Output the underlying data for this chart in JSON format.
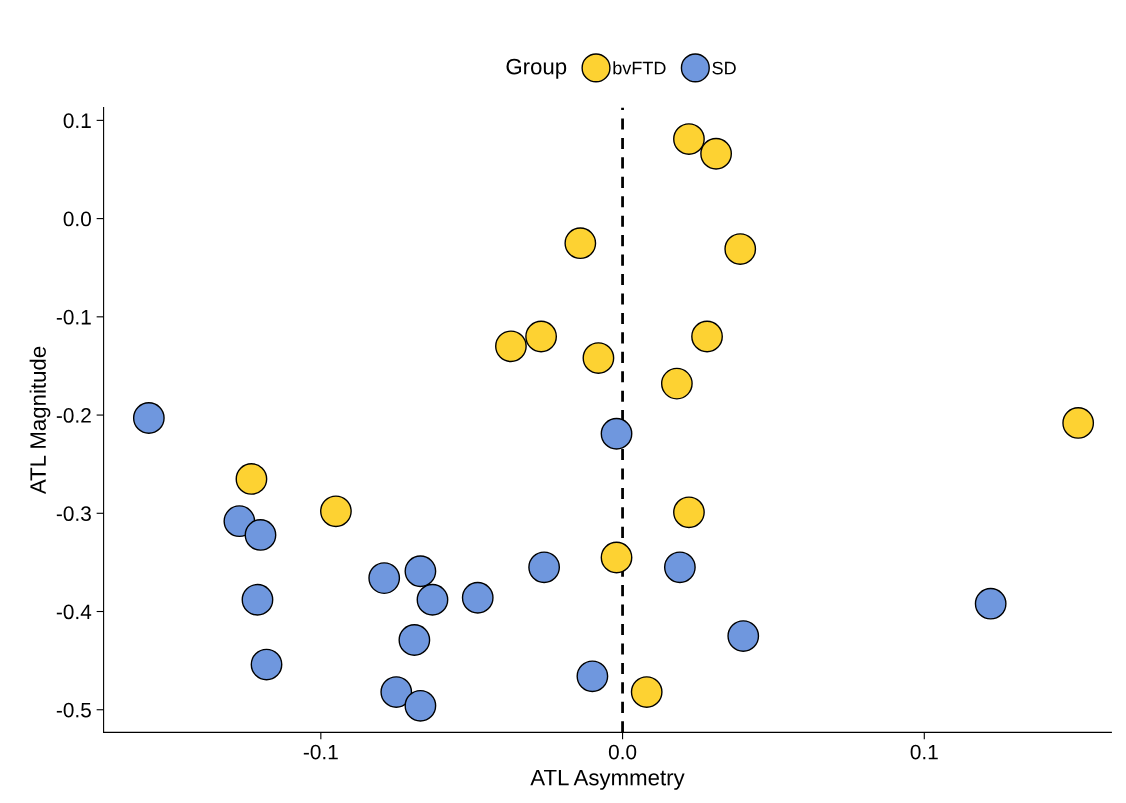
{
  "chart_data": {
    "type": "scatter",
    "xlabel": "ATL Asymmetry",
    "ylabel": "ATL Magnitude",
    "legend_title": "Group",
    "legend": "top",
    "marker": "circle",
    "grid": false,
    "xlim": [
      -0.172,
      0.162
    ],
    "ylim": [
      -0.523,
      0.113
    ],
    "xticks": [
      -0.1,
      {
        "value": 0,
        "label": "0.0"
      },
      0.1
    ],
    "yticks": [
      0.1,
      {
        "value": 0,
        "label": "0.0"
      },
      -0.1,
      -0.2,
      -0.3,
      -0.4,
      -0.5
    ],
    "ref_lines": [
      {
        "axis": "x",
        "value": 0,
        "line_style": "dashed",
        "color": "#000000"
      }
    ],
    "series": [
      {
        "name": "bvFTD",
        "color": "#fdd232",
        "x": [
          0.022,
          0.031,
          -0.014,
          0.039,
          -0.027,
          -0.037,
          -0.008,
          0.028,
          0.018,
          0.151,
          -0.123,
          -0.095,
          0.022,
          -0.002,
          0.008
        ],
        "values": [
          0.081,
          0.066,
          -0.025,
          -0.031,
          -0.12,
          -0.13,
          -0.142,
          -0.12,
          -0.168,
          -0.208,
          -0.265,
          -0.298,
          -0.299,
          -0.345,
          -0.482
        ]
      },
      {
        "name": "SD",
        "color": "#6f97de",
        "x": [
          -0.157,
          -0.002,
          -0.127,
          -0.12,
          -0.079,
          -0.067,
          -0.026,
          0.019,
          -0.121,
          -0.063,
          -0.048,
          0.122,
          -0.069,
          0.04,
          -0.118,
          -0.01,
          -0.075,
          -0.067
        ],
        "values": [
          -0.203,
          -0.219,
          -0.308,
          -0.322,
          -0.366,
          -0.359,
          -0.355,
          -0.355,
          -0.388,
          -0.388,
          -0.386,
          -0.392,
          -0.429,
          -0.425,
          -0.454,
          -0.466,
          -0.482,
          -0.496
        ]
      }
    ]
  }
}
